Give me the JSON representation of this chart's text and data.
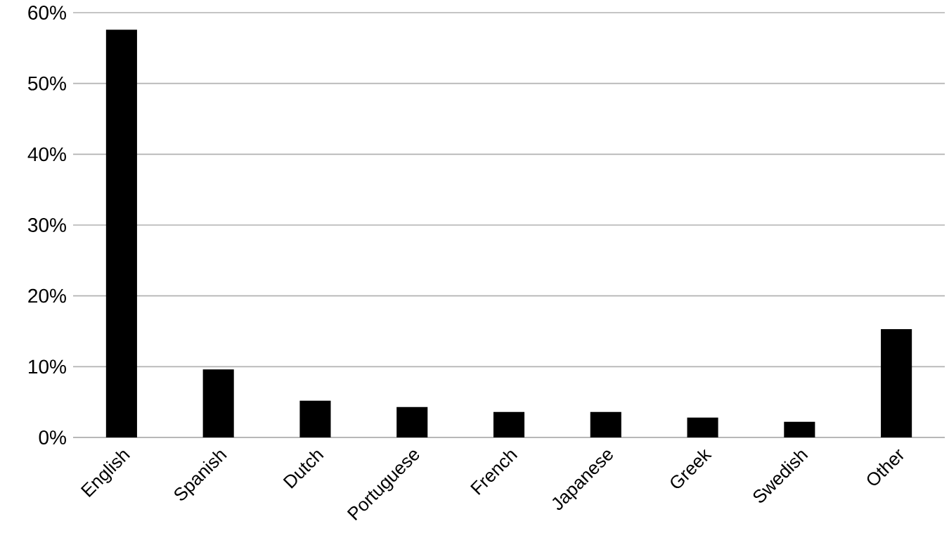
{
  "chart_data": {
    "type": "bar",
    "categories": [
      "English",
      "Spanish",
      "Dutch",
      "Portuguese",
      "French",
      "Japanese",
      "Greek",
      "Swedish",
      "Other"
    ],
    "values": [
      57.6,
      9.6,
      5.2,
      4.3,
      3.6,
      3.6,
      2.8,
      2.2,
      15.3
    ],
    "color": "#000000",
    "ylim": [
      0,
      60
    ],
    "yticks": [
      {
        "value": 0,
        "label": "0%"
      },
      {
        "value": 10,
        "label": "10%"
      },
      {
        "value": 20,
        "label": "20%"
      },
      {
        "value": 30,
        "label": "30%"
      },
      {
        "value": 40,
        "label": "40%"
      },
      {
        "value": 50,
        "label": "50%"
      },
      {
        "value": 60,
        "label": "60%"
      }
    ],
    "grid": "y"
  }
}
